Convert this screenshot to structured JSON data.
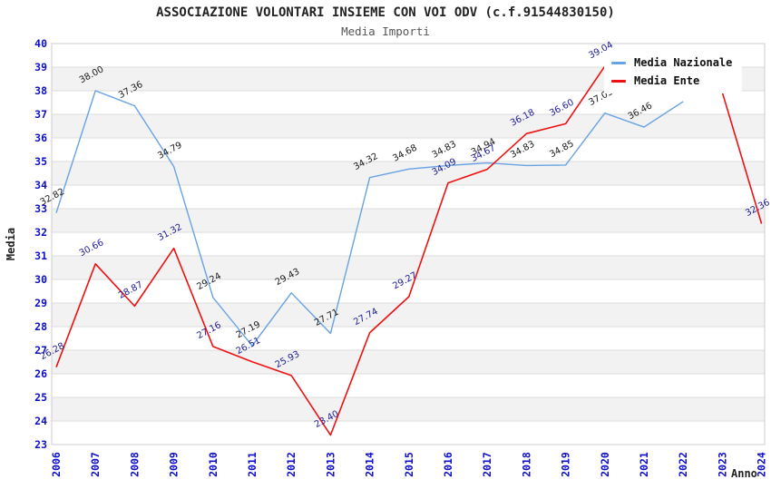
{
  "header": {
    "title": "ASSOCIAZIONE VOLONTARI INSIEME CON VOI ODV (c.f.91544830150)",
    "subtitle": "Media Importi"
  },
  "chart_data": {
    "type": "line",
    "title": "ASSOCIAZIONE VOLONTARI INSIEME CON VOI ODV (c.f.91544830150)",
    "subtitle": "Media Importi",
    "xlabel": "Anno",
    "ylabel": "Media",
    "ylim": [
      23,
      40
    ],
    "ytick_step": 1,
    "xticks": [
      2006,
      2007,
      2008,
      2009,
      2010,
      2011,
      2012,
      2013,
      2014,
      2015,
      2016,
      2017,
      2018,
      2019,
      2020,
      2021,
      2022,
      2023,
      2024
    ],
    "legend_position": "top-right",
    "grid": {
      "horizontal_lines": true,
      "alternating_bands": true
    },
    "colors": {
      "tick_label": "#0d0dcc",
      "grid_line": "#dcdcdc",
      "band_gray": "#f2f2f2",
      "plot_border": "#cccccc"
    },
    "series": [
      {
        "name": "Media Nazionale",
        "color": "#68a2e4",
        "label_color": "#1a1a1a",
        "years": [
          2006,
          2007,
          2008,
          2009,
          2010,
          2011,
          2012,
          2013,
          2014,
          2015,
          2016,
          2017,
          2018,
          2019,
          2020,
          2021,
          2022
        ],
        "values": [
          32.82,
          38.0,
          37.36,
          34.79,
          29.24,
          27.19,
          29.43,
          27.71,
          34.32,
          34.68,
          34.83,
          34.94,
          34.83,
          34.85,
          37.05,
          36.46,
          37.54
        ],
        "labels": [
          "32.82",
          "38.00",
          "37.36",
          "34.79",
          "29.24",
          "27.19",
          "29.43",
          "27.71",
          "34.32",
          "34.68",
          "34.83",
          "34.94",
          "34.83",
          "34.85",
          "37.05",
          "36.46",
          "37.54"
        ]
      },
      {
        "name": "Media Ente",
        "color": "#ee1111",
        "label_color": "#1c1c96",
        "years": [
          2006,
          2007,
          2008,
          2009,
          2010,
          2011,
          2012,
          2013,
          2014,
          2015,
          2016,
          2017,
          2018,
          2019,
          2020,
          2021,
          2022,
          2023,
          2024
        ],
        "values": [
          26.28,
          30.66,
          28.87,
          31.32,
          27.16,
          26.51,
          25.93,
          23.4,
          27.74,
          29.27,
          34.09,
          34.67,
          36.18,
          36.6,
          39.04,
          38.67,
          38.29,
          37.92,
          32.36
        ],
        "labels": [
          "26.28",
          "30.66",
          "28.87",
          "31.32",
          "27.16",
          "26.51",
          "25.93",
          "23.40",
          "27.74",
          "29.27",
          "34.09",
          "34.67",
          "36.18",
          "36.60",
          "39.04",
          "",
          "",
          "",
          "32.36"
        ]
      }
    ]
  }
}
